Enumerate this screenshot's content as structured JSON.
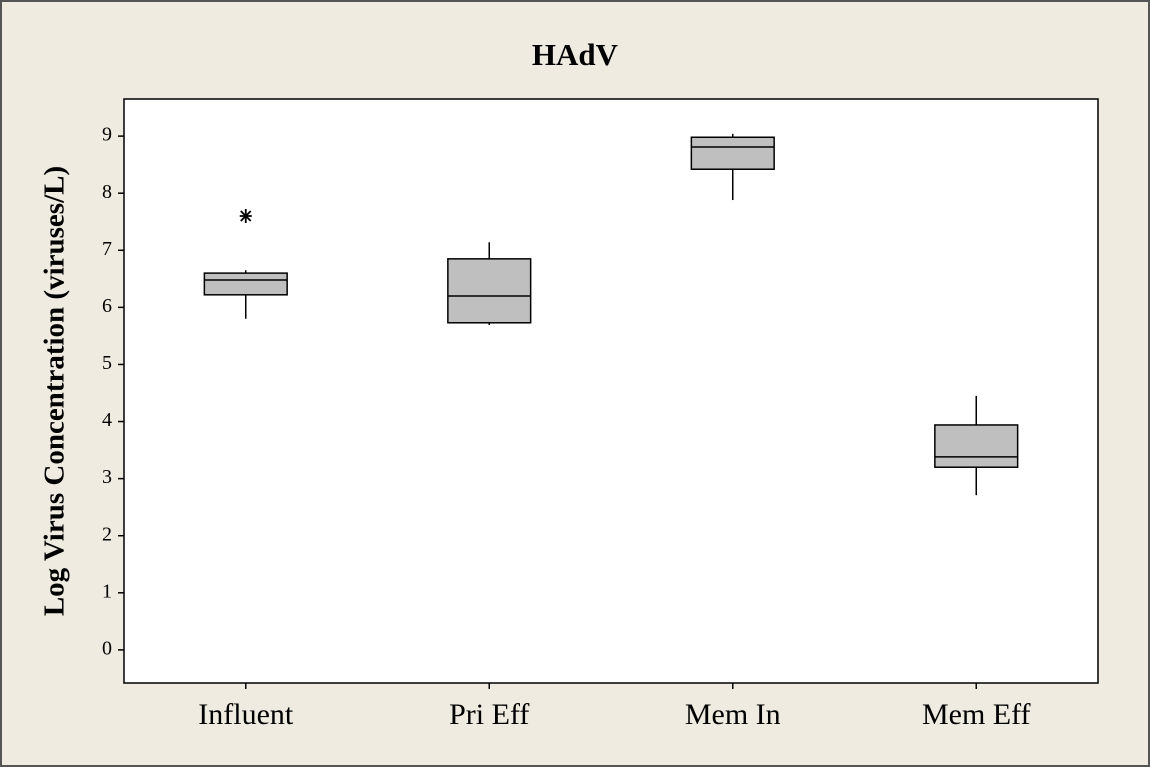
{
  "chart_data": {
    "type": "box",
    "title": "HAdV",
    "y_label": "Log Virus Concentration (viruses/L)",
    "categories": [
      "Influent",
      "Pri Eff",
      "Mem In",
      "Mem Eff"
    ],
    "boxes": [
      {
        "low": 5.8,
        "q1": 6.22,
        "median": 6.48,
        "q3": 6.6,
        "high": 6.65,
        "outliers": [
          7.6
        ]
      },
      {
        "low": 5.69,
        "q1": 5.73,
        "median": 6.2,
        "q3": 6.85,
        "high": 7.14,
        "outliers": []
      },
      {
        "low": 7.88,
        "q1": 8.42,
        "median": 8.81,
        "q3": 8.98,
        "high": 9.04,
        "outliers": []
      },
      {
        "low": 2.71,
        "q1": 3.2,
        "median": 3.38,
        "q3": 3.94,
        "high": 4.45,
        "outliers": []
      }
    ],
    "color": "#bfbfbf",
    "ylim": [
      -0.58,
      9.65
    ],
    "yticks": [
      0,
      1,
      2,
      3,
      4,
      5,
      6,
      7,
      8,
      9
    ],
    "grid": false
  }
}
